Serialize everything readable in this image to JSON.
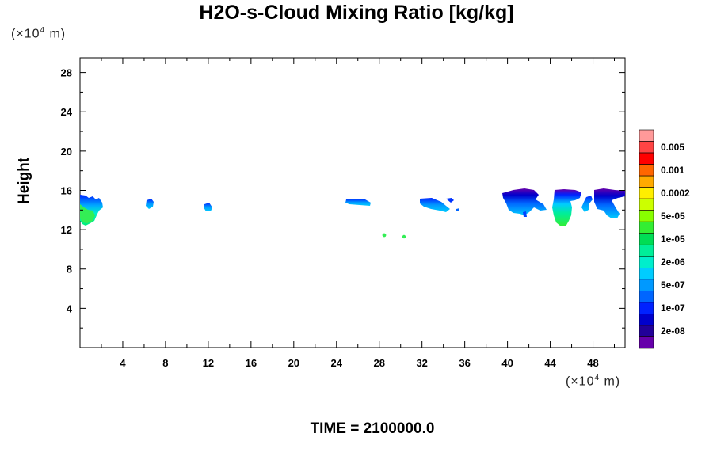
{
  "chart_data": {
    "type": "heatmap",
    "title": "H2O-s-Cloud Mixing Ratio [kg/kg]",
    "ylabel": "Height",
    "y_unit": "(×10",
    "x_unit": "(×10",
    "unit_exp": "4",
    "unit_suffix": " m)",
    "footer": "TIME = 2100000.0",
    "xlim": [
      0,
      51
    ],
    "ylim": [
      0,
      29.5
    ],
    "x_ticks": [
      4,
      8,
      12,
      16,
      20,
      24,
      28,
      32,
      36,
      40,
      44,
      48
    ],
    "y_ticks": [
      4,
      8,
      12,
      16,
      20,
      24,
      28
    ],
    "colorbar": {
      "labels": [
        "0.005",
        "0.001",
        "0.0002",
        "5e-05",
        "1e-05",
        "2e-06",
        "5e-07",
        "1e-07",
        "2e-08"
      ],
      "colors": [
        "#ff9999",
        "#ff4444",
        "#ff0000",
        "#ff6600",
        "#ffaa00",
        "#ffee00",
        "#ccff00",
        "#88ff00",
        "#33ee33",
        "#00dd55",
        "#00ee99",
        "#00eecc",
        "#00ccff",
        "#0099ff",
        "#0066ff",
        "#0022ff",
        "#0000cc",
        "#220099",
        "#6600aa"
      ]
    },
    "features": [
      {
        "x": [
          0,
          2.1
        ],
        "y": [
          12.5,
          15.7
        ],
        "level": "5e-07 to 2e-05"
      },
      {
        "x": [
          6.3,
          6.9
        ],
        "y": [
          14.6,
          15.4
        ],
        "level": "2e-08 to 1e-07"
      },
      {
        "x": [
          11.7,
          12.4
        ],
        "y": [
          14.1,
          15.0
        ],
        "level": "2e-08 to 1e-07"
      },
      {
        "x": [
          25,
          27.3
        ],
        "y": [
          14.8,
          15.5
        ],
        "level": "2e-08 to 1e-07"
      },
      {
        "x": [
          28.4,
          28.6
        ],
        "y": [
          11.6,
          11.9
        ],
        "level": "2e-06"
      },
      {
        "x": [
          30.2,
          30.4
        ],
        "y": [
          11.4,
          11.6
        ],
        "level": "2e-06"
      },
      {
        "x": [
          32,
          35.2
        ],
        "y": [
          14.0,
          15.4
        ],
        "level": "2e-08 to 5e-07"
      },
      {
        "x": [
          39.9,
          43.9
        ],
        "y": [
          13.4,
          16.5
        ],
        "level": "2e-08 to 5e-07"
      },
      {
        "x": [
          44.4,
          47.4
        ],
        "y": [
          12.7,
          16.4
        ],
        "level": "2e-08 to 1e-05"
      },
      {
        "x": [
          47.1,
          51
        ],
        "y": [
          13.4,
          16.5
        ],
        "level": "2e-08 to 5e-07"
      }
    ]
  }
}
